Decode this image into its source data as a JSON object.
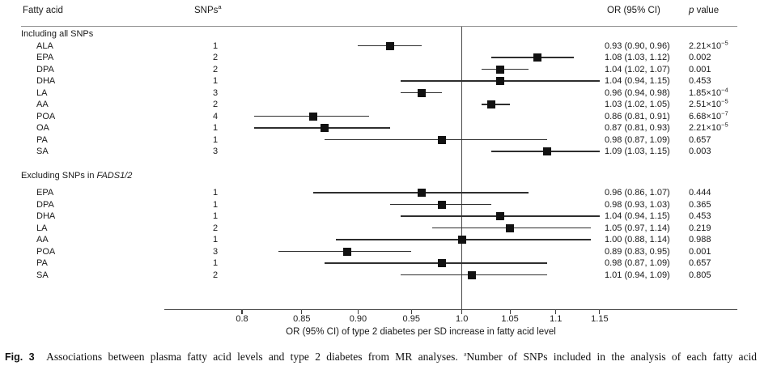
{
  "header": {
    "fatty_acid_label": "Fatty acid",
    "snps_label": "SNPs",
    "snps_superscript": "a",
    "or_ci_label": "OR (95% CI)",
    "p_label_italic": "p",
    "p_label_rest": " value"
  },
  "caption": {
    "figure_label": "Fig. 3",
    "text": "Associations between plasma fatty acid levels and type 2 diabetes from MR analyses. ",
    "superscript": "a",
    "footnote_text": "Number of SNPs included in the analysis of each fatty acid"
  },
  "colors": {
    "marker": "#111111",
    "line": "#2e2e2e",
    "text": "#1a1a1a",
    "divider": "#8f8f8f"
  },
  "chart_data": {
    "type": "scatter",
    "subtype": "forest-plot",
    "title": "",
    "xlabel": "OR (95% CI) of type 2 diabetes per SD increase in fatty acid level",
    "x_scale": "log",
    "xlim": [
      0.74,
      1.32
    ],
    "x_tick_values": [
      0.8,
      0.85,
      0.9,
      0.95,
      1.0,
      1.05,
      1.1,
      1.15
    ],
    "x_tick_labels": [
      "0.8",
      "0.85",
      "0.90",
      "0.95",
      "1.0",
      "1.05",
      "1.1",
      "1.15"
    ],
    "reference_line": 1.0,
    "grid": false,
    "groups": [
      {
        "label": "Including all SNPs",
        "label_italic": "",
        "rows": [
          {
            "fatty_acid": "ALA",
            "snps": "1",
            "or": 0.93,
            "ci_low": 0.9,
            "ci_high": 0.96,
            "or_ci_text": "0.93 (0.90, 0.96)",
            "p_text": "2.21×10",
            "p_exp": "−5"
          },
          {
            "fatty_acid": "EPA",
            "snps": "2",
            "or": 1.08,
            "ci_low": 1.03,
            "ci_high": 1.12,
            "or_ci_text": "1.08 (1.03, 1.12)",
            "p_text": "0.002",
            "p_exp": ""
          },
          {
            "fatty_acid": "DPA",
            "snps": "2",
            "or": 1.04,
            "ci_low": 1.02,
            "ci_high": 1.07,
            "or_ci_text": "1.04 (1.02, 1.07)",
            "p_text": "0.001",
            "p_exp": ""
          },
          {
            "fatty_acid": "DHA",
            "snps": "1",
            "or": 1.04,
            "ci_low": 0.94,
            "ci_high": 1.15,
            "or_ci_text": "1.04 (0.94, 1.15)",
            "p_text": "0.453",
            "p_exp": ""
          },
          {
            "fatty_acid": "LA",
            "snps": "3",
            "or": 0.96,
            "ci_low": 0.94,
            "ci_high": 0.98,
            "or_ci_text": "0.96 (0.94, 0.98)",
            "p_text": "1.85×10",
            "p_exp": "−4"
          },
          {
            "fatty_acid": "AA",
            "snps": "2",
            "or": 1.03,
            "ci_low": 1.02,
            "ci_high": 1.05,
            "or_ci_text": "1.03 (1.02, 1.05)",
            "p_text": "2.51×10",
            "p_exp": "−5"
          },
          {
            "fatty_acid": "POA",
            "snps": "4",
            "or": 0.86,
            "ci_low": 0.81,
            "ci_high": 0.91,
            "or_ci_text": "0.86 (0.81, 0.91)",
            "p_text": "6.68×10",
            "p_exp": "−7"
          },
          {
            "fatty_acid": "OA",
            "snps": "1",
            "or": 0.87,
            "ci_low": 0.81,
            "ci_high": 0.93,
            "or_ci_text": "0.87 (0.81, 0.93)",
            "p_text": "2.21×10",
            "p_exp": "−5"
          },
          {
            "fatty_acid": "PA",
            "snps": "1",
            "or": 0.98,
            "ci_low": 0.87,
            "ci_high": 1.09,
            "or_ci_text": "0.98 (0.87, 1.09)",
            "p_text": "0.657",
            "p_exp": ""
          },
          {
            "fatty_acid": "SA",
            "snps": "3",
            "or": 1.09,
            "ci_low": 1.03,
            "ci_high": 1.15,
            "or_ci_text": "1.09 (1.03, 1.15)",
            "p_text": "0.003",
            "p_exp": ""
          }
        ]
      },
      {
        "label": "Excluding SNPs in ",
        "label_italic": "FADS1/2",
        "rows": [
          {
            "fatty_acid": "EPA",
            "snps": "1",
            "or": 0.96,
            "ci_low": 0.86,
            "ci_high": 1.07,
            "or_ci_text": "0.96 (0.86, 1.07)",
            "p_text": "0.444",
            "p_exp": ""
          },
          {
            "fatty_acid": "DPA",
            "snps": "1",
            "or": 0.98,
            "ci_low": 0.93,
            "ci_high": 1.03,
            "or_ci_text": "0.98 (0.93, 1.03)",
            "p_text": "0.365",
            "p_exp": ""
          },
          {
            "fatty_acid": "DHA",
            "snps": "1",
            "or": 1.04,
            "ci_low": 0.94,
            "ci_high": 1.15,
            "or_ci_text": "1.04 (0.94, 1.15)",
            "p_text": "0.453",
            "p_exp": ""
          },
          {
            "fatty_acid": "LA",
            "snps": "2",
            "or": 1.05,
            "ci_low": 0.97,
            "ci_high": 1.14,
            "or_ci_text": "1.05 (0.97, 1.14)",
            "p_text": "0.219",
            "p_exp": ""
          },
          {
            "fatty_acid": "AA",
            "snps": "1",
            "or": 1.0,
            "ci_low": 0.88,
            "ci_high": 1.14,
            "or_ci_text": "1.00 (0.88, 1.14)",
            "p_text": "0.988",
            "p_exp": ""
          },
          {
            "fatty_acid": "POA",
            "snps": "3",
            "or": 0.89,
            "ci_low": 0.83,
            "ci_high": 0.95,
            "or_ci_text": "0.89 (0.83, 0.95)",
            "p_text": "0.001",
            "p_exp": ""
          },
          {
            "fatty_acid": "PA",
            "snps": "1",
            "or": 0.98,
            "ci_low": 0.87,
            "ci_high": 1.09,
            "or_ci_text": "0.98 (0.87, 1.09)",
            "p_text": "0.657",
            "p_exp": ""
          },
          {
            "fatty_acid": "SA",
            "snps": "2",
            "or": 1.01,
            "ci_low": 0.94,
            "ci_high": 1.09,
            "or_ci_text": "1.01 (0.94, 1.09)",
            "p_text": "0.805",
            "p_exp": ""
          }
        ]
      }
    ]
  }
}
